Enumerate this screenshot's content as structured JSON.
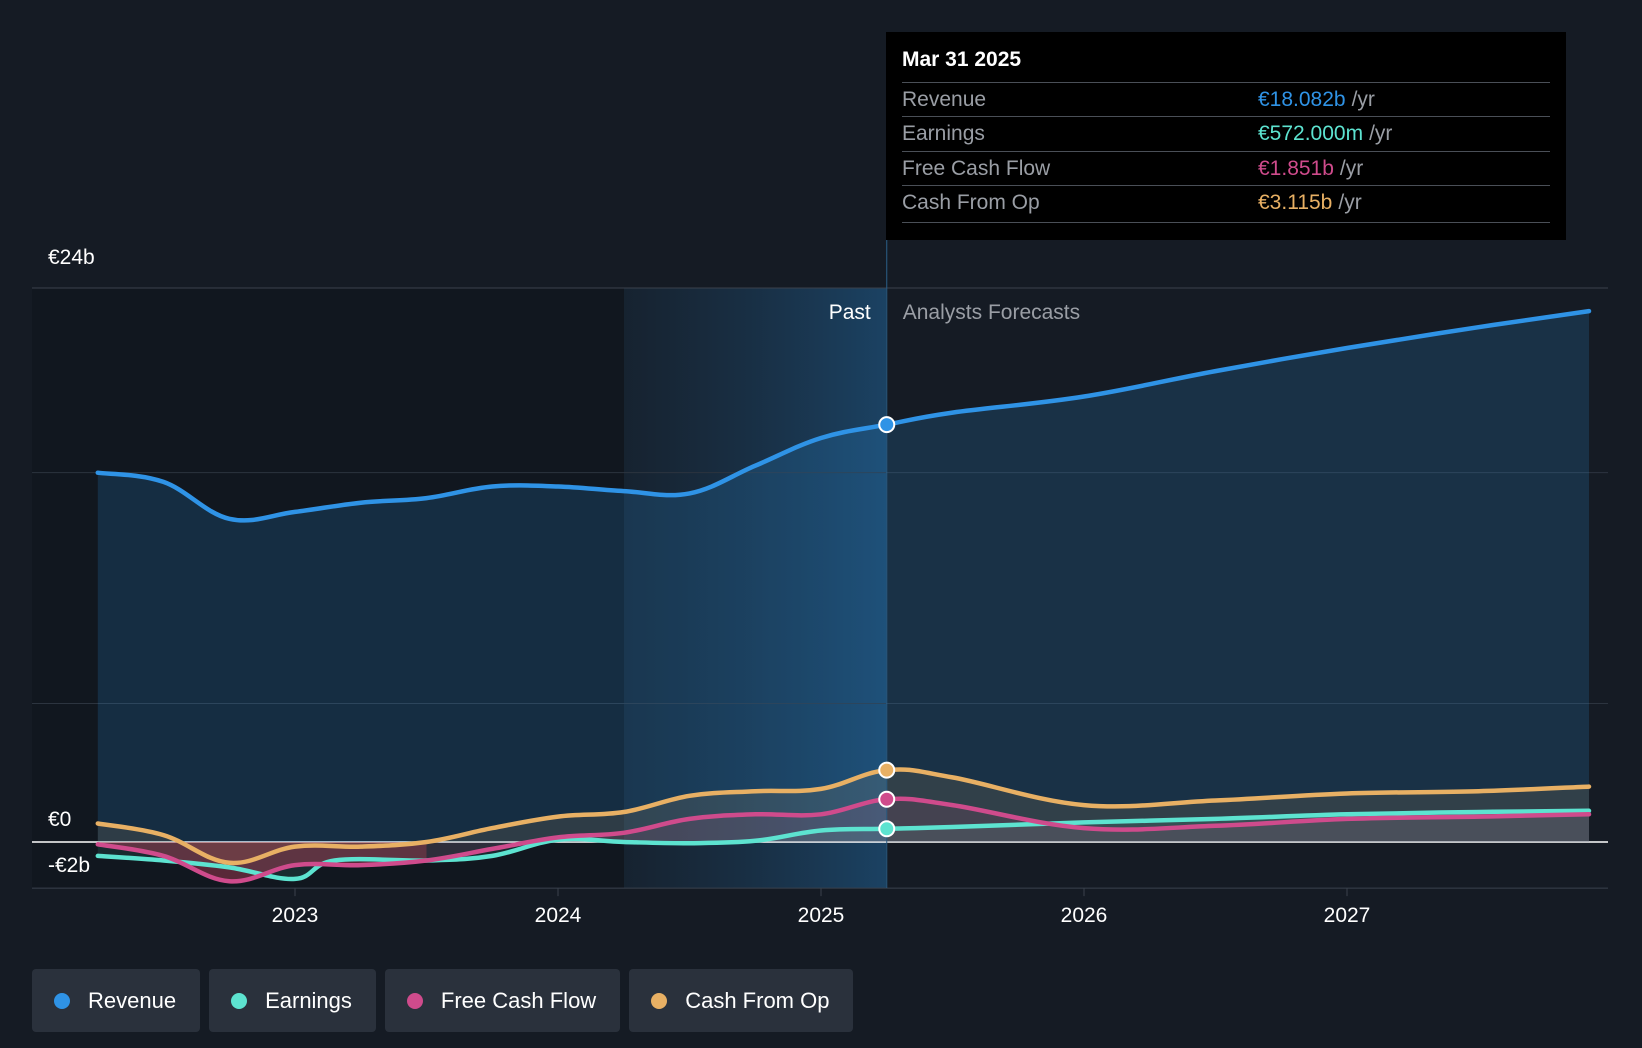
{
  "chart_data": {
    "type": "line",
    "title": "",
    "y_axis": {
      "min": -2,
      "max": 24,
      "unit": "€b",
      "tick_labels": [
        "€24b",
        "€0",
        "-€2b"
      ]
    },
    "x_axis": {
      "tick_labels": [
        "2023",
        "2024",
        "2025",
        "2026",
        "2027"
      ]
    },
    "sections": {
      "past_label": "Past",
      "forecast_label": "Analysts Forecasts",
      "divider_x": 2025.25
    },
    "series": [
      {
        "name": "Revenue",
        "color": "#2f93e6",
        "points": [
          [
            2022.25,
            16.0
          ],
          [
            2022.5,
            15.6
          ],
          [
            2022.75,
            14.0
          ],
          [
            2023.0,
            14.3
          ],
          [
            2023.25,
            14.7
          ],
          [
            2023.5,
            14.9
          ],
          [
            2023.75,
            15.4
          ],
          [
            2024.0,
            15.4
          ],
          [
            2024.25,
            15.2
          ],
          [
            2024.5,
            15.1
          ],
          [
            2024.75,
            16.3
          ],
          [
            2025.0,
            17.5
          ],
          [
            2025.25,
            18.082
          ],
          [
            2025.5,
            18.6
          ],
          [
            2026.0,
            19.3
          ],
          [
            2026.5,
            20.4
          ],
          [
            2027.0,
            21.4
          ],
          [
            2027.5,
            22.3
          ],
          [
            2027.92,
            23.0
          ]
        ]
      },
      {
        "name": "Earnings",
        "color": "#5de3d0",
        "points": [
          [
            2022.25,
            -0.6
          ],
          [
            2022.5,
            -0.8
          ],
          [
            2022.75,
            -1.1
          ],
          [
            2023.0,
            -1.6
          ],
          [
            2023.15,
            -0.8
          ],
          [
            2023.5,
            -0.8
          ],
          [
            2023.75,
            -0.6
          ],
          [
            2024.0,
            0.1
          ],
          [
            2024.25,
            0.0
          ],
          [
            2024.5,
            -0.05
          ],
          [
            2024.75,
            0.05
          ],
          [
            2025.0,
            0.5
          ],
          [
            2025.25,
            0.572
          ],
          [
            2025.5,
            0.65
          ],
          [
            2026.0,
            0.85
          ],
          [
            2026.5,
            1.0
          ],
          [
            2027.0,
            1.2
          ],
          [
            2027.5,
            1.3
          ],
          [
            2027.92,
            1.35
          ]
        ]
      },
      {
        "name": "Free Cash Flow",
        "color": "#cf4b8c",
        "points": [
          [
            2022.25,
            -0.1
          ],
          [
            2022.5,
            -0.6
          ],
          [
            2022.75,
            -1.7
          ],
          [
            2023.0,
            -1.0
          ],
          [
            2023.25,
            -1.0
          ],
          [
            2023.5,
            -0.8
          ],
          [
            2023.75,
            -0.3
          ],
          [
            2024.0,
            0.2
          ],
          [
            2024.25,
            0.4
          ],
          [
            2024.5,
            1.0
          ],
          [
            2024.75,
            1.2
          ],
          [
            2025.0,
            1.2
          ],
          [
            2025.25,
            1.851
          ],
          [
            2025.5,
            1.6
          ],
          [
            2026.0,
            0.6
          ],
          [
            2026.5,
            0.7
          ],
          [
            2027.0,
            1.0
          ],
          [
            2027.5,
            1.1
          ],
          [
            2027.92,
            1.2
          ]
        ]
      },
      {
        "name": "Cash From Op",
        "color": "#e8b064",
        "points": [
          [
            2022.25,
            0.8
          ],
          [
            2022.5,
            0.3
          ],
          [
            2022.75,
            -0.9
          ],
          [
            2023.0,
            -0.2
          ],
          [
            2023.25,
            -0.2
          ],
          [
            2023.5,
            0.0
          ],
          [
            2023.75,
            0.6
          ],
          [
            2024.0,
            1.1
          ],
          [
            2024.25,
            1.3
          ],
          [
            2024.5,
            2.0
          ],
          [
            2024.75,
            2.2
          ],
          [
            2025.0,
            2.3
          ],
          [
            2025.25,
            3.115
          ],
          [
            2025.5,
            2.8
          ],
          [
            2026.0,
            1.6
          ],
          [
            2026.5,
            1.8
          ],
          [
            2027.0,
            2.1
          ],
          [
            2027.5,
            2.2
          ],
          [
            2027.92,
            2.4
          ]
        ]
      }
    ]
  },
  "tooltip": {
    "date": "Mar 31 2025",
    "rows": [
      {
        "label": "Revenue",
        "value": "€18.082b",
        "unit": "/yr",
        "color": "#2f93e6"
      },
      {
        "label": "Earnings",
        "value": "€572.000m",
        "unit": "/yr",
        "color": "#5de3d0"
      },
      {
        "label": "Free Cash Flow",
        "value": "€1.851b",
        "unit": "/yr",
        "color": "#cf4b8c"
      },
      {
        "label": "Cash From Op",
        "value": "€3.115b",
        "unit": "/yr",
        "color": "#e8b064"
      }
    ]
  },
  "legend": [
    {
      "label": "Revenue",
      "color": "#2f93e6"
    },
    {
      "label": "Earnings",
      "color": "#5de3d0"
    },
    {
      "label": "Free Cash Flow",
      "color": "#cf4b8c"
    },
    {
      "label": "Cash From Op",
      "color": "#e8b064"
    }
  ]
}
